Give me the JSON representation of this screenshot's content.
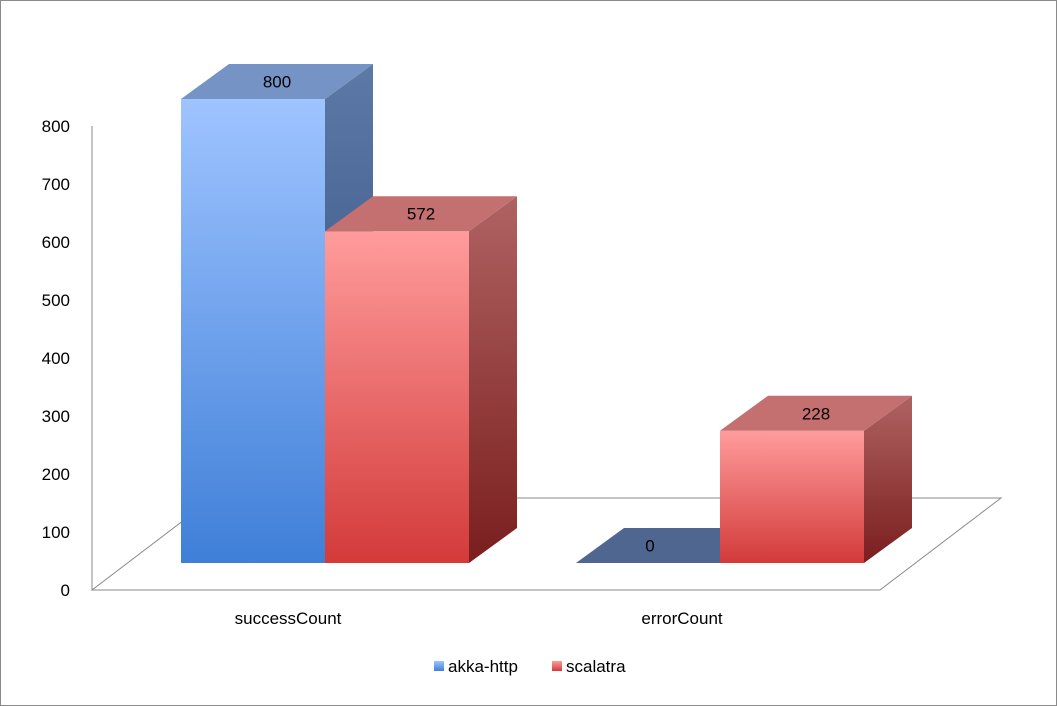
{
  "chart_data": {
    "type": "bar",
    "categories": [
      "successCount",
      "errorCount"
    ],
    "series": [
      {
        "name": "akka-http",
        "values": [
          800,
          0
        ],
        "color": "#6fa2ee"
      },
      {
        "name": "scalatra",
        "values": [
          572,
          228
        ],
        "color": "#e8585a"
      }
    ],
    "title": "",
    "xlabel": "",
    "ylabel": "",
    "ylim": [
      0,
      800
    ],
    "yticks": [
      "0",
      "100",
      "200",
      "300",
      "400",
      "500",
      "600",
      "700",
      "800"
    ],
    "grid": false,
    "legend": "bottom",
    "style": "3d-column"
  }
}
